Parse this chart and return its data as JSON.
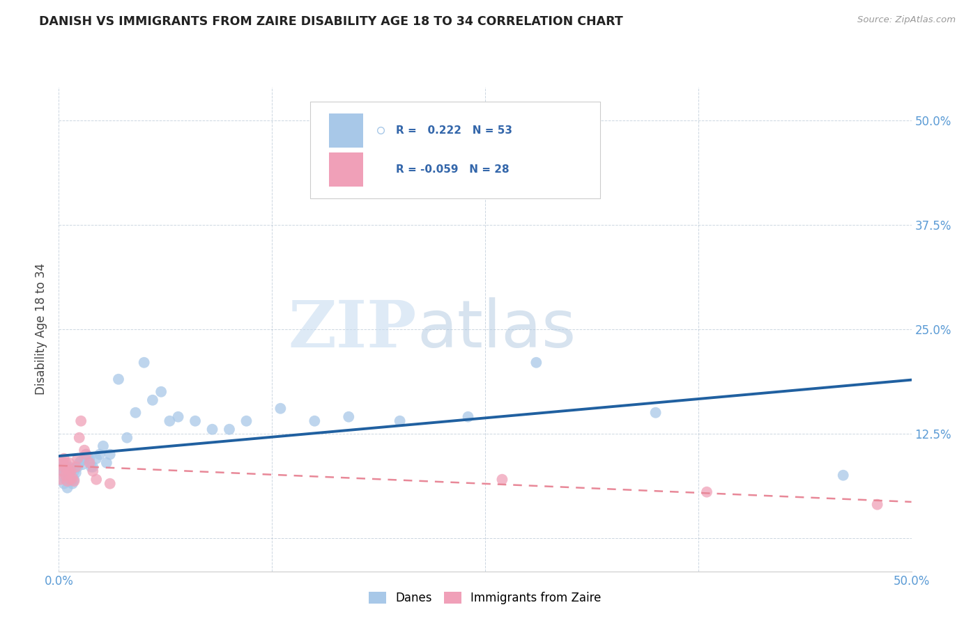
{
  "title": "DANISH VS IMMIGRANTS FROM ZAIRE DISABILITY AGE 18 TO 34 CORRELATION CHART",
  "source": "Source: ZipAtlas.com",
  "ylabel": "Disability Age 18 to 34",
  "xlim": [
    0.0,
    0.5
  ],
  "ylim": [
    -0.04,
    0.54
  ],
  "legend_R_blue": "0.222",
  "legend_N_blue": "53",
  "legend_R_pink": "-0.059",
  "legend_N_pink": "28",
  "blue_scatter_color": "#A8C8E8",
  "pink_scatter_color": "#F0A0B8",
  "blue_line_color": "#2060A0",
  "pink_line_color": "#E88898",
  "watermark_zip": "ZIP",
  "watermark_atlas": "atlas",
  "danes_scatter_x": [
    0.001,
    0.002,
    0.002,
    0.003,
    0.003,
    0.004,
    0.004,
    0.005,
    0.005,
    0.006,
    0.006,
    0.007,
    0.007,
    0.008,
    0.008,
    0.009,
    0.009,
    0.01,
    0.011,
    0.012,
    0.013,
    0.014,
    0.015,
    0.016,
    0.017,
    0.018,
    0.019,
    0.02,
    0.022,
    0.024,
    0.026,
    0.028,
    0.03,
    0.035,
    0.04,
    0.045,
    0.05,
    0.055,
    0.06,
    0.065,
    0.07,
    0.08,
    0.09,
    0.1,
    0.11,
    0.13,
    0.15,
    0.17,
    0.2,
    0.24,
    0.28,
    0.35,
    0.46
  ],
  "danes_scatter_y": [
    0.085,
    0.075,
    0.09,
    0.065,
    0.08,
    0.07,
    0.085,
    0.06,
    0.08,
    0.075,
    0.085,
    0.068,
    0.075,
    0.065,
    0.082,
    0.07,
    0.08,
    0.078,
    0.085,
    0.09,
    0.092,
    0.088,
    0.095,
    0.1,
    0.098,
    0.095,
    0.085,
    0.085,
    0.095,
    0.1,
    0.11,
    0.09,
    0.1,
    0.19,
    0.12,
    0.15,
    0.21,
    0.165,
    0.175,
    0.14,
    0.145,
    0.14,
    0.13,
    0.13,
    0.14,
    0.155,
    0.14,
    0.145,
    0.14,
    0.145,
    0.21,
    0.15,
    0.075
  ],
  "zaire_scatter_x": [
    0.001,
    0.002,
    0.002,
    0.003,
    0.003,
    0.004,
    0.004,
    0.005,
    0.005,
    0.006,
    0.006,
    0.007,
    0.007,
    0.008,
    0.009,
    0.01,
    0.011,
    0.012,
    0.013,
    0.015,
    0.016,
    0.018,
    0.02,
    0.022,
    0.03,
    0.26,
    0.38,
    0.48
  ],
  "zaire_scatter_y": [
    0.07,
    0.08,
    0.09,
    0.085,
    0.095,
    0.075,
    0.09,
    0.068,
    0.082,
    0.078,
    0.09,
    0.07,
    0.08,
    0.072,
    0.068,
    0.085,
    0.095,
    0.12,
    0.14,
    0.105,
    0.1,
    0.09,
    0.08,
    0.07,
    0.065,
    0.07,
    0.055,
    0.04
  ]
}
